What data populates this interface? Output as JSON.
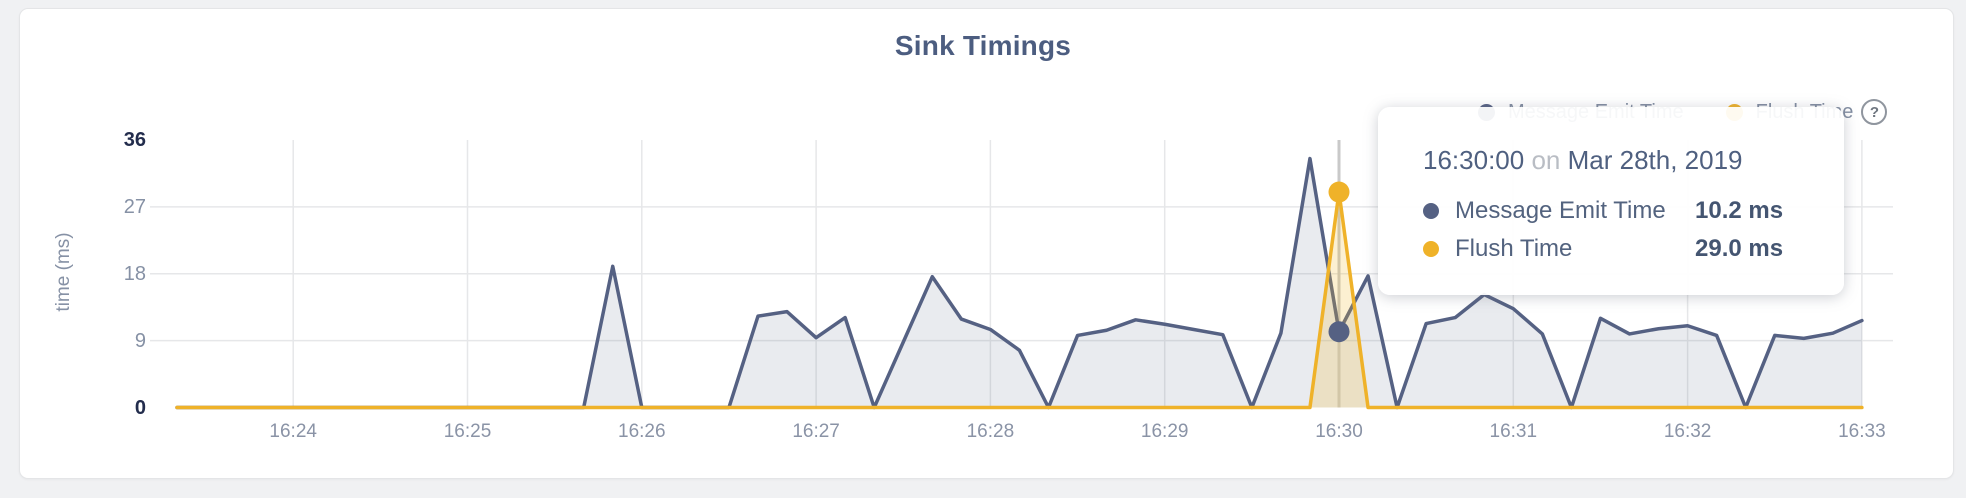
{
  "chart_data": {
    "type": "area",
    "title": "Sink Timings",
    "xlabel": "",
    "ylabel": "time (ms)",
    "yticks": [
      0,
      9,
      18,
      27,
      36
    ],
    "ylim": [
      0,
      36
    ],
    "xticks": [
      "16:24",
      "16:25",
      "16:26",
      "16:27",
      "16:28",
      "16:29",
      "16:30",
      "16:31",
      "16:32",
      "16:33"
    ],
    "x_start": "16:23:20",
    "x_interval_seconds": 10,
    "grid": "on",
    "legend_position": "top-right",
    "series": [
      {
        "name": "Message Emit Time",
        "color": "#556183",
        "area_color": "rgba(87,99,133,0.13)",
        "values": [
          0,
          0,
          0,
          0,
          0,
          0,
          0,
          0,
          0,
          0,
          0,
          0,
          0,
          0,
          0,
          19,
          0,
          0,
          0,
          0,
          12.3,
          12.9,
          9.4,
          12.1,
          0,
          8.8,
          17.6,
          11.9,
          10.5,
          7.7,
          0,
          9.7,
          10.4,
          11.8,
          11.2,
          10.5,
          9.8,
          0,
          10,
          33.5,
          10.2,
          17.7,
          0,
          11.3,
          12.1,
          15.2,
          13.3,
          9.9,
          0,
          12,
          9.9,
          10.6,
          11,
          9.7,
          0,
          9.7,
          9.3,
          10,
          11.7
        ]
      },
      {
        "name": "Flush Time",
        "color": "#efb229",
        "area_color": "rgba(240,185,45,0.22)",
        "values": [
          0,
          0,
          0,
          0,
          0,
          0,
          0,
          0,
          0,
          0,
          0,
          0,
          0,
          0,
          0,
          0,
          0,
          0,
          0,
          0,
          0,
          0,
          0,
          0,
          0,
          0,
          0,
          0,
          0,
          0,
          0,
          0,
          0,
          0,
          0,
          0,
          0,
          0,
          0,
          0,
          29,
          0,
          0,
          0,
          0,
          0,
          0,
          0,
          0,
          0,
          0,
          0,
          0,
          0,
          0,
          0,
          0,
          0,
          0
        ]
      }
    ],
    "highlight": {
      "index": 40,
      "time": "16:30:00"
    }
  },
  "legend": {
    "help_label": "?"
  },
  "tooltip": {
    "time": "16:30:00",
    "connector": "on",
    "date": "Mar 28th, 2019",
    "rows": [
      {
        "label": "Message Emit Time",
        "value": "10.2 ms",
        "color": "#556183"
      },
      {
        "label": "Flush Time",
        "value": "29.0 ms",
        "color": "#efb229"
      }
    ]
  },
  "colors": {
    "grid": "#e6e7e9",
    "crosshair": "#c9c9c9",
    "title": "#4c5d80",
    "tick_major": "#232d4d",
    "tick_minor": "#8691a5"
  }
}
